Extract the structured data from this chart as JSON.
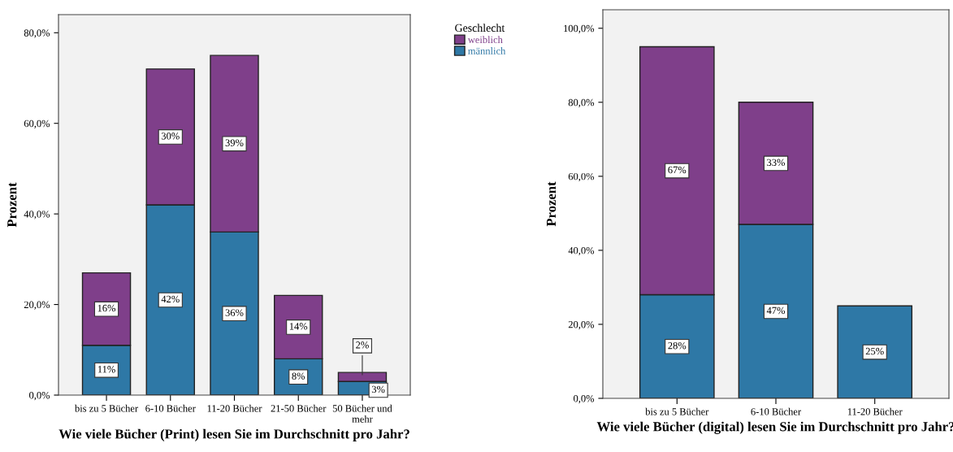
{
  "chart_data": [
    {
      "type": "bar",
      "stacked": true,
      "xlabel": "Wie viele Bücher (Print) lesen Sie im Durchschnitt pro Jahr?",
      "ylabel": "Prozent",
      "legend_title": "Geschlecht",
      "legend": "right",
      "categories": [
        "bis zu 5 Bücher",
        "6-10 Bücher",
        "11-20 Bücher",
        "21-50 Bücher",
        "50 Bücher und\nmehr"
      ],
      "series": [
        {
          "name": "männlich",
          "color": "#2e78a6",
          "values": [
            11,
            42,
            36,
            8,
            3
          ],
          "value_labels": [
            "11%",
            "42%",
            "36%",
            "8%",
            "3%"
          ]
        },
        {
          "name": "weiblich",
          "color": "#7f3f8a",
          "values": [
            16,
            30,
            39,
            14,
            2
          ],
          "value_labels": [
            "16%",
            "30%",
            "39%",
            "14%",
            "2%"
          ]
        }
      ],
      "ylim": [
        0,
        84
      ],
      "yticks": [
        {
          "value": 0,
          "label": "0,0%"
        },
        {
          "value": 20,
          "label": "20,0%"
        },
        {
          "value": 40,
          "label": "40,0%"
        },
        {
          "value": 60,
          "label": "60,0%"
        },
        {
          "value": 80,
          "label": "80,0%"
        }
      ],
      "grid": false
    },
    {
      "type": "bar",
      "stacked": true,
      "xlabel": "Wie viele Bücher (digital) lesen Sie im Durchschnitt pro Jahr?",
      "ylabel": "Prozent",
      "categories": [
        "bis zu 5 Bücher",
        "6-10 Bücher",
        "11-20 Bücher"
      ],
      "series": [
        {
          "color": "#2e78a6",
          "values": [
            28,
            47,
            25
          ],
          "value_labels": [
            "28%",
            "47%",
            "25%"
          ]
        },
        {
          "color": "#7f3f8a",
          "values": [
            67,
            33,
            null
          ],
          "value_labels": [
            "67%",
            "33%",
            null
          ]
        }
      ],
      "ylim": [
        0,
        105
      ],
      "yticks": [
        {
          "value": 0,
          "label": "0,0%"
        },
        {
          "value": 20,
          "label": "20,0%"
        },
        {
          "value": 40,
          "label": "40,0%"
        },
        {
          "value": 60,
          "label": "60,0%"
        },
        {
          "value": 80,
          "label": "80,0%"
        },
        {
          "value": 100,
          "label": "100,0%"
        }
      ],
      "grid": false
    }
  ]
}
